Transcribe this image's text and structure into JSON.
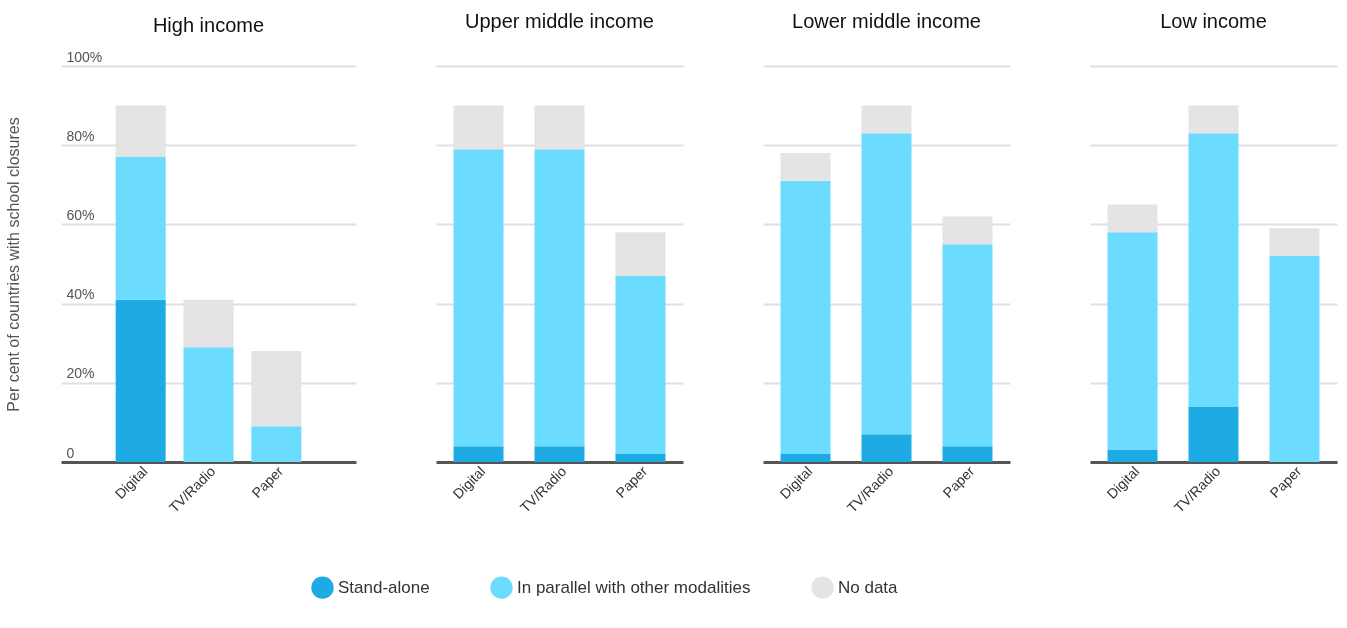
{
  "chart_data": [
    {
      "type": "bar",
      "title": "High income",
      "ylabel": "Per cent of countries with school closures",
      "categories": [
        "Digital",
        "TV/Radio",
        "Paper"
      ],
      "stacked": true,
      "ylim": [
        0,
        100
      ],
      "yticks": [
        0,
        {
          "value": 20,
          "label": "20%"
        },
        {
          "value": 40,
          "label": "40%"
        },
        {
          "value": 60,
          "label": "60%"
        },
        {
          "value": 80,
          "label": "80%"
        },
        {
          "value": 100,
          "label": "100%"
        }
      ],
      "grid": "y",
      "legend": "bottom",
      "series": [
        {
          "name": "Stand-alone",
          "color": "#1eaae2",
          "values": [
            41,
            0,
            0
          ]
        },
        {
          "name": "In parallel with other modalities",
          "color": "#6cdcfe",
          "values": [
            36,
            29,
            9
          ]
        },
        {
          "name": "No data",
          "color": "#e4e4e4",
          "values": [
            13,
            12,
            19
          ]
        }
      ]
    },
    {
      "type": "bar",
      "title": "Upper middle income",
      "categories": [
        "Digital",
        "TV/Radio",
        "Paper"
      ],
      "stacked": true,
      "ylim": [
        0,
        100
      ],
      "yticks": [
        {
          "value": 0,
          "label": null
        },
        {
          "value": 20,
          "label": null
        },
        {
          "value": 40,
          "label": null
        },
        {
          "value": 60,
          "label": null
        },
        {
          "value": 80,
          "label": null
        },
        {
          "value": 100,
          "label": null
        }
      ],
      "grid": "y",
      "tick_labels": "x",
      "series": [
        {
          "name": "Stand-alone",
          "color": "#1eaae2",
          "values": [
            4,
            4,
            2
          ]
        },
        {
          "name": "In parallel with other modalities",
          "color": "#6cdcfe",
          "values": [
            75,
            75,
            45
          ]
        },
        {
          "name": "No data",
          "color": "#e4e4e4",
          "values": [
            11,
            11,
            11
          ]
        }
      ]
    },
    {
      "type": "bar",
      "title": "Lower middle income",
      "categories": [
        "Digital",
        "TV/Radio",
        "Paper"
      ],
      "stacked": true,
      "ylim": [
        0,
        100
      ],
      "yticks": [
        {
          "value": 0,
          "label": null
        },
        {
          "value": 20,
          "label": null
        },
        {
          "value": 40,
          "label": null
        },
        {
          "value": 60,
          "label": null
        },
        {
          "value": 80,
          "label": null
        },
        {
          "value": 100,
          "label": null
        }
      ],
      "grid": "y",
      "tick_labels": "x",
      "series": [
        {
          "name": "Stand-alone",
          "color": "#1eaae2",
          "values": [
            2,
            7,
            4
          ]
        },
        {
          "name": "In parallel with other modalities",
          "color": "#6cdcfe",
          "values": [
            69,
            76,
            51
          ]
        },
        {
          "name": "No data",
          "color": "#e4e4e4",
          "values": [
            7,
            7,
            7
          ]
        }
      ]
    },
    {
      "type": "bar",
      "title": "Low income",
      "categories": [
        "Digital",
        "TV/Radio",
        "Paper"
      ],
      "stacked": true,
      "ylim": [
        0,
        100
      ],
      "yticks": [
        {
          "value": 0,
          "label": null
        },
        {
          "value": 20,
          "label": null
        },
        {
          "value": 40,
          "label": null
        },
        {
          "value": 60,
          "label": null
        },
        {
          "value": 80,
          "label": null
        },
        {
          "value": 100,
          "label": null
        }
      ],
      "grid": "y",
      "tick_labels": "x",
      "series": [
        {
          "name": "Stand-alone",
          "color": "#1eaae2",
          "values": [
            3,
            14,
            0
          ]
        },
        {
          "name": "In parallel with other modalities",
          "color": "#6cdcfe",
          "values": [
            55,
            69,
            52
          ]
        },
        {
          "name": "No data",
          "color": "#e4e4e4",
          "values": [
            7,
            7,
            7
          ]
        }
      ]
    }
  ]
}
